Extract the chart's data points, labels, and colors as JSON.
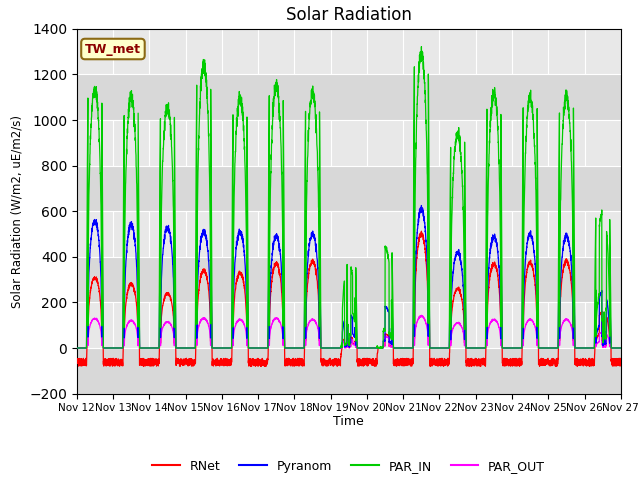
{
  "title": "Solar Radiation",
  "ylabel": "Solar Radiation (W/m2, uE/m2/s)",
  "xlabel": "Time",
  "ylim": [
    -200,
    1400
  ],
  "xlim": [
    0,
    15
  ],
  "annotation": "TW_met",
  "annotation_color": "#8B0000",
  "annotation_bg": "#FFFFCC",
  "annotation_border": "#8B6914",
  "bg_color": "#e8e8e8",
  "line_colors": {
    "RNet": "#ff0000",
    "Pyranom": "#0000ff",
    "PAR_IN": "#00cc00",
    "PAR_OUT": "#ff00ff"
  },
  "x_tick_labels": [
    "Nov 12",
    "Nov 13",
    "Nov 14",
    "Nov 15",
    "Nov 16",
    "Nov 17",
    "Nov 18",
    "Nov 19",
    "Nov 20",
    "Nov 21",
    "Nov 22",
    "Nov 23",
    "Nov 24",
    "Nov 25",
    "Nov 26",
    "Nov 27"
  ],
  "num_days": 15,
  "points_per_day": 288,
  "day_params": [
    {
      "peak_par": 1140,
      "peak_pyr": 560,
      "peak_rnet": 310,
      "peak_parout": 130,
      "cloudy": false
    },
    {
      "peak_par": 1100,
      "peak_pyr": 540,
      "peak_rnet": 280,
      "peak_parout": 120,
      "cloudy": false
    },
    {
      "peak_par": 1060,
      "peak_pyr": 530,
      "peak_rnet": 240,
      "peak_parout": 115,
      "cloudy": false
    },
    {
      "peak_par": 1240,
      "peak_pyr": 510,
      "peak_rnet": 340,
      "peak_parout": 130,
      "cloudy": false
    },
    {
      "peak_par": 1100,
      "peak_pyr": 510,
      "peak_rnet": 330,
      "peak_parout": 125,
      "cloudy": false
    },
    {
      "peak_par": 1150,
      "peak_pyr": 490,
      "peak_rnet": 370,
      "peak_parout": 130,
      "cloudy": false
    },
    {
      "peak_par": 1120,
      "peak_pyr": 500,
      "peak_rnet": 380,
      "peak_parout": 125,
      "cloudy": false
    },
    {
      "peak_par": 370,
      "peak_pyr": 150,
      "peak_rnet": 50,
      "peak_parout": 40,
      "cloudy": true
    },
    {
      "peak_par": 440,
      "peak_pyr": 180,
      "peak_rnet": 60,
      "peak_parout": 50,
      "cloudy": true
    },
    {
      "peak_par": 1290,
      "peak_pyr": 610,
      "peak_rnet": 500,
      "peak_parout": 140,
      "cloudy": false
    },
    {
      "peak_par": 940,
      "peak_pyr": 420,
      "peak_rnet": 260,
      "peak_parout": 110,
      "cloudy": false
    },
    {
      "peak_par": 1120,
      "peak_pyr": 490,
      "peak_rnet": 370,
      "peak_parout": 125,
      "cloudy": false
    },
    {
      "peak_par": 1100,
      "peak_pyr": 500,
      "peak_rnet": 375,
      "peak_parout": 125,
      "cloudy": false
    },
    {
      "peak_par": 1100,
      "peak_pyr": 490,
      "peak_rnet": 380,
      "peak_parout": 125,
      "cloudy": false
    },
    {
      "peak_par": 600,
      "peak_pyr": 250,
      "peak_rnet": 160,
      "peak_parout": 70,
      "cloudy": true
    }
  ]
}
